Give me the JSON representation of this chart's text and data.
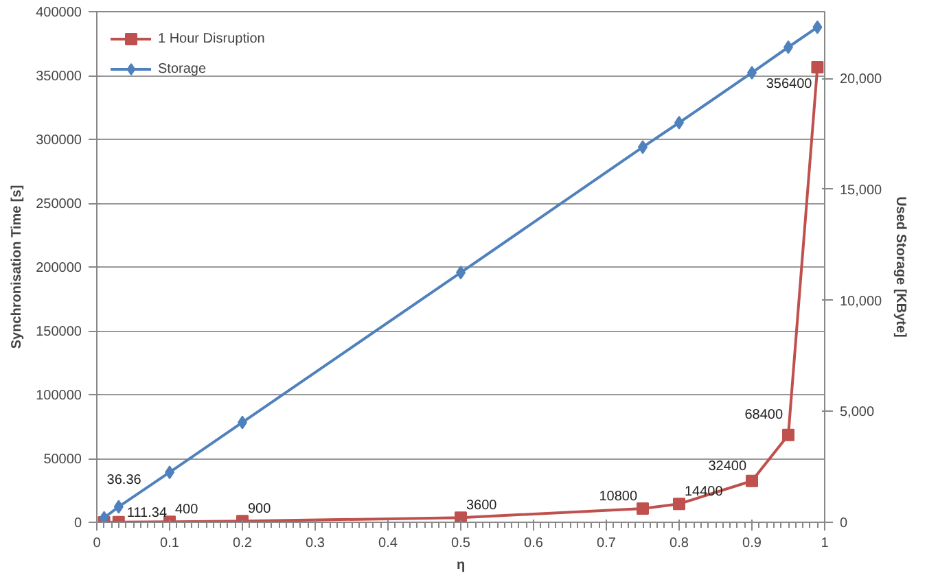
{
  "chart_data": {
    "type": "line",
    "xlabel": "η",
    "ylabel": "Synchronisation Time [s]",
    "y2label": "Used Storage [KByte]",
    "x": [
      0.01,
      0.03,
      0.1,
      0.2,
      0.5,
      0.75,
      0.8,
      0.9,
      0.95,
      0.99
    ],
    "series": [
      {
        "name": "1 Hour Disruption",
        "color": "#c0504d",
        "marker": "square",
        "values": [
          36.36,
          111.34,
          400,
          900,
          3600,
          10800,
          14400,
          32400,
          68400,
          356400
        ],
        "value_labels": [
          "36.36",
          "111.34",
          "400",
          "900",
          "3600",
          "10800",
          "14400",
          "32400",
          "68400",
          "356400"
        ]
      },
      {
        "name": "Storage",
        "color": "#4f81bd",
        "marker": "diamond",
        "axis": "y2",
        "values": [
          200,
          700,
          2250,
          4500,
          11250,
          16900,
          18000,
          20250,
          21400,
          22300
        ]
      }
    ],
    "xlim": [
      0,
      1
    ],
    "xticks": [
      0,
      0.1,
      0.2,
      0.3,
      0.4,
      0.5,
      0.6,
      0.7,
      0.8,
      0.9,
      1
    ],
    "ylim": [
      0,
      400000
    ],
    "yticks": [
      0,
      50000,
      100000,
      150000,
      200000,
      250000,
      300000,
      350000,
      400000
    ],
    "y2lim": [
      0,
      23000
    ],
    "y2ticks": [
      0,
      {
        "value": 5000,
        "label": "5,000"
      },
      {
        "value": 10000,
        "label": "10,000"
      },
      {
        "value": 15000,
        "label": "15,000"
      },
      {
        "value": 20000,
        "label": "20,000"
      }
    ],
    "grid": "y",
    "legend": "top left",
    "line_style": "solid"
  }
}
